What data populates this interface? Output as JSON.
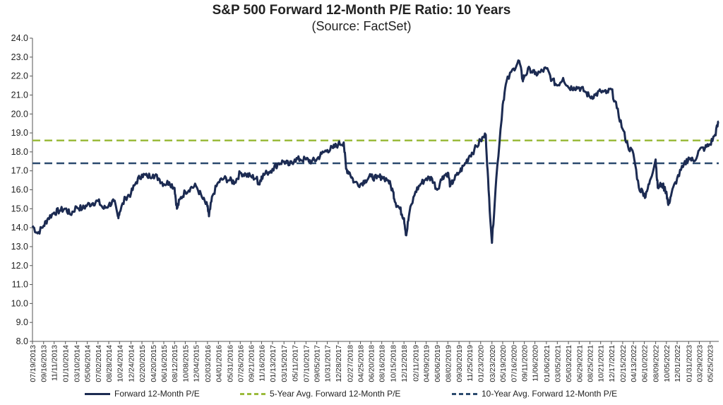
{
  "chart_data": {
    "type": "line",
    "title": "S&P 500 Forward 12-Month P/E Ratio: 10 Years",
    "subtitle": "(Source: FactSet)",
    "ylim": [
      8.0,
      24.0
    ],
    "yticks": [
      "8.0",
      "9.0",
      "10.0",
      "11.0",
      "12.0",
      "13.0",
      "14.0",
      "15.0",
      "16.0",
      "17.0",
      "18.0",
      "19.0",
      "20.0",
      "21.0",
      "22.0",
      "23.0",
      "24.0"
    ],
    "xtick_labels": [
      "07/19/2013",
      "09/16/2013",
      "11/11/2013",
      "01/10/2014",
      "03/10/2014",
      "05/06/2014",
      "07/02/2014",
      "08/28/2014",
      "10/24/2014",
      "12/24/2014",
      "02/20/2015",
      "04/20/2015",
      "06/16/2015",
      "08/12/2015",
      "10/08/2015",
      "12/04/2015",
      "02/03/2016",
      "04/01/2016",
      "05/31/2016",
      "07/26/2016",
      "09/21/2016",
      "11/16/2016",
      "01/13/2017",
      "03/15/2017",
      "05/11/2017",
      "07/10/2017",
      "09/05/2017",
      "10/31/2017",
      "12/28/2017",
      "02/27/2018",
      "04/25/2018",
      "06/20/2018",
      "08/16/2018",
      "10/15/2018",
      "12/12/2018",
      "02/11/2019",
      "04/09/2019",
      "06/06/2019",
      "08/02/2019",
      "09/30/2019",
      "11/25/2019",
      "01/23/2020",
      "03/23/2020",
      "05/19/2020",
      "07/16/2020",
      "09/11/2020",
      "11/06/2020",
      "01/06/2021",
      "03/05/2021",
      "05/03/2021",
      "06/29/2021",
      "08/25/2021",
      "10/21/2021",
      "12/17/2021",
      "02/15/2022",
      "04/13/2022",
      "06/10/2022",
      "08/09/2022",
      "10/05/2022",
      "12/01/2022",
      "01/31/2023",
      "03/29/2023",
      "05/25/2023"
    ],
    "reference_lines": [
      {
        "name": "5-Year Avg. Forward 12-Month P/E",
        "value": 18.6,
        "color": "#9bbb3c"
      },
      {
        "name": "10-Year Avg. Forward 12-Month P/E",
        "value": 17.4,
        "color": "#2b4a6e"
      }
    ],
    "series": [
      {
        "name": "Forward 12-Month P/E",
        "color": "#1c2b52",
        "x": [
          "07/19/2013",
          "08/15/2013",
          "09/16/2013",
          "10/10/2013",
          "11/11/2013",
          "12/10/2013",
          "01/10/2014",
          "02/05/2014",
          "03/10/2014",
          "04/10/2014",
          "05/06/2014",
          "06/05/2014",
          "07/02/2014",
          "08/01/2014",
          "08/28/2014",
          "09/25/2014",
          "10/15/2014",
          "10/24/2014",
          "11/25/2014",
          "12/24/2014",
          "01/20/2015",
          "02/20/2015",
          "03/20/2015",
          "04/20/2015",
          "05/20/2015",
          "06/16/2015",
          "07/15/2015",
          "08/12/2015",
          "08/25/2015",
          "09/10/2015",
          "10/08/2015",
          "11/05/2015",
          "12/04/2015",
          "01/05/2016",
          "02/03/2016",
          "02/11/2016",
          "03/01/2016",
          "04/01/2016",
          "05/01/2016",
          "05/31/2016",
          "06/27/2016",
          "07/26/2016",
          "08/25/2016",
          "09/21/2016",
          "10/20/2016",
          "11/03/2016",
          "11/16/2016",
          "12/15/2016",
          "01/13/2017",
          "02/15/2017",
          "03/15/2017",
          "04/13/2017",
          "05/11/2017",
          "06/10/2017",
          "07/10/2017",
          "08/10/2017",
          "09/05/2017",
          "10/01/2017",
          "10/31/2017",
          "11/30/2017",
          "12/28/2017",
          "01/26/2018",
          "02/08/2018",
          "02/27/2018",
          "03/23/2018",
          "04/25/2018",
          "05/20/2018",
          "06/20/2018",
          "07/20/2018",
          "08/16/2018",
          "09/20/2018",
          "10/15/2018",
          "10/29/2018",
          "11/20/2018",
          "12/12/2018",
          "12/24/2018",
          "01/10/2019",
          "02/11/2019",
          "03/10/2019",
          "04/09/2019",
          "05/10/2019",
          "06/06/2019",
          "07/05/2019",
          "08/02/2019",
          "08/15/2019",
          "09/01/2019",
          "09/30/2019",
          "10/28/2019",
          "11/25/2019",
          "12/20/2019",
          "01/23/2020",
          "02/19/2020",
          "03/05/2020",
          "03/23/2020",
          "04/15/2020",
          "05/19/2020",
          "06/08/2020",
          "07/16/2020",
          "08/15/2020",
          "09/02/2020",
          "09/11/2020",
          "10/10/2020",
          "11/06/2020",
          "12/05/2020",
          "01/06/2021",
          "02/05/2021",
          "03/05/2021",
          "04/05/2021",
          "05/03/2021",
          "06/01/2021",
          "06/29/2021",
          "07/28/2021",
          "08/25/2021",
          "09/23/2021",
          "10/21/2021",
          "11/20/2021",
          "12/17/2021",
          "01/15/2022",
          "02/15/2022",
          "03/15/2022",
          "04/13/2022",
          "05/12/2022",
          "06/10/2022",
          "06/16/2022",
          "07/10/2022",
          "08/09/2022",
          "08/20/2022",
          "09/10/2022",
          "10/05/2022",
          "10/15/2022",
          "11/01/2022",
          "12/01/2022",
          "01/01/2023",
          "01/31/2023",
          "02/28/2023",
          "03/29/2023",
          "04/28/2023",
          "05/25/2023",
          "06/20/2023",
          "07/10/2023"
        ],
        "values": [
          14.1,
          13.7,
          14.1,
          14.5,
          14.8,
          14.9,
          15.0,
          14.7,
          15.1,
          15.0,
          15.2,
          15.3,
          15.4,
          15.0,
          15.2,
          15.4,
          14.6,
          14.8,
          15.6,
          15.8,
          16.4,
          16.8,
          16.7,
          16.8,
          16.6,
          16.3,
          16.4,
          16.1,
          15.0,
          15.5,
          15.9,
          16.1,
          16.2,
          15.6,
          15.1,
          14.6,
          15.7,
          16.4,
          16.6,
          16.5,
          16.4,
          16.9,
          16.8,
          16.7,
          16.6,
          16.3,
          16.7,
          16.9,
          17.1,
          17.4,
          17.5,
          17.3,
          17.6,
          17.6,
          17.6,
          17.5,
          17.6,
          17.9,
          18.1,
          18.2,
          18.4,
          18.5,
          17.1,
          16.9,
          16.4,
          16.3,
          16.5,
          16.7,
          16.6,
          16.7,
          16.5,
          15.9,
          15.3,
          15.0,
          14.5,
          13.6,
          14.8,
          15.9,
          16.3,
          16.6,
          16.6,
          16.0,
          16.7,
          16.9,
          16.2,
          16.5,
          16.9,
          17.3,
          17.8,
          18.1,
          18.6,
          18.9,
          16.0,
          13.2,
          16.6,
          20.5,
          21.7,
          22.4,
          22.8,
          21.8,
          22.0,
          22.4,
          22.1,
          22.2,
          22.4,
          21.8,
          21.5,
          21.9,
          21.4,
          21.4,
          21.4,
          21.2,
          20.9,
          21.0,
          21.2,
          21.1,
          21.3,
          20.3,
          19.2,
          18.3,
          17.9,
          16.1,
          15.8,
          15.6,
          16.5,
          17.6,
          16.1,
          16.3,
          15.9,
          15.2,
          15.8,
          16.6,
          17.2,
          17.7,
          17.5,
          18.1,
          18.2,
          18.4,
          18.9,
          19.6
        ]
      }
    ]
  }
}
